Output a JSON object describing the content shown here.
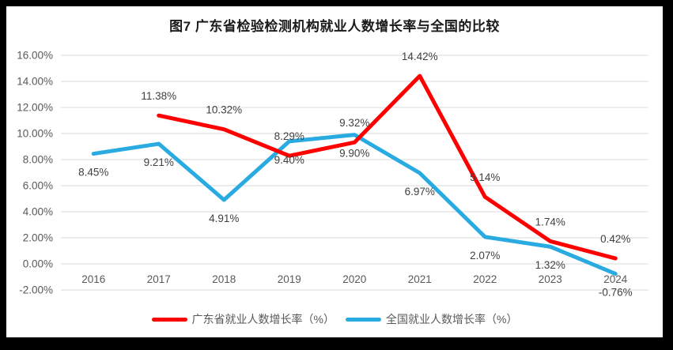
{
  "frame": {
    "background": "#ffffff",
    "border_color": "#000000"
  },
  "chart_data": {
    "type": "line",
    "title": "图7  广东省检验检测机构就业人数增长率与全国的比较",
    "categories": [
      "2016",
      "2017",
      "2018",
      "2019",
      "2020",
      "2021",
      "2022",
      "2023",
      "2024"
    ],
    "series": [
      {
        "name": "广东省就业人数增长率（%）",
        "color": "#fe0000",
        "values": [
          null,
          11.38,
          10.32,
          8.29,
          9.32,
          14.42,
          5.14,
          1.74,
          0.42
        ],
        "point_labels": [
          "",
          "11.38%",
          "10.32%",
          "8.29%",
          "9.32%",
          "14.42%",
          "5.14%",
          "1.74%",
          "0.42%"
        ],
        "label_position": "above"
      },
      {
        "name": "全国就业人数增长率（%）",
        "color": "#29abe2",
        "values": [
          8.45,
          9.21,
          4.91,
          9.4,
          9.9,
          6.97,
          2.07,
          1.32,
          -0.76
        ],
        "point_labels": [
          "8.45%",
          "9.21%",
          "4.91%",
          "9.40%",
          "9.90%",
          "6.97%",
          "2.07%",
          "1.32%",
          "-0.76%"
        ],
        "label_position": "below"
      }
    ],
    "y_ticks": [
      "16.00%",
      "14.00%",
      "12.00%",
      "10.00%",
      "8.00%",
      "6.00%",
      "4.00%",
      "2.00%",
      "0.00%",
      "-2.00%"
    ],
    "ylim": [
      -2,
      16
    ],
    "grid": true,
    "grid_color": "#d9d9d9",
    "axis_text_color": "#595959",
    "data_label_color": "#404040",
    "legend_position": "bottom"
  }
}
